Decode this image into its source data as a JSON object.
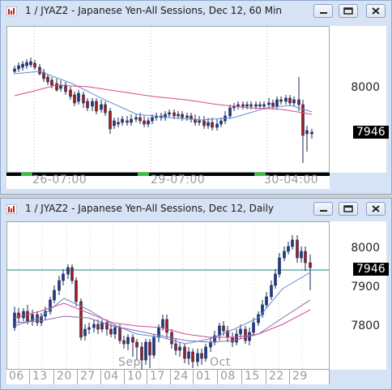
{
  "windows": [
    {
      "title": "1 / JYAZ2 - Japanese Yen-All Sessions, Dec 12, 60 Min",
      "y_ticks": [
        {
          "value": 8000,
          "label": "8000"
        }
      ],
      "last_price": "7946",
      "x_labels": [
        "26-07:00",
        "29-07:00",
        "30-04:00"
      ]
    },
    {
      "title": "1 / JYAZ2 - Japanese Yen-All Sessions, Dec 12, Daily",
      "y_ticks": [
        {
          "value": 8000,
          "label": "8000"
        },
        {
          "value": 7900,
          "label": "7900"
        },
        {
          "value": 7800,
          "label": "7800"
        }
      ],
      "last_price": "7946",
      "month_labels": [
        "Sep",
        "Oct"
      ],
      "day_labels": [
        "06",
        "13",
        "20",
        "27",
        "04",
        "10",
        "17",
        "24",
        "01",
        "08",
        "15",
        "22",
        "29"
      ]
    }
  ],
  "colors": {
    "up_candle": "#1e3a8a",
    "down_candle": "#a11c1c",
    "ma_fast": "#5b8fd8",
    "ma_slow": "#d64a8a",
    "price_line": "#1a8a8a",
    "session_active": "#35c435"
  },
  "icons": [
    "chart-app-icon",
    "minimize-icon",
    "restore-icon",
    "close-icon"
  ]
}
